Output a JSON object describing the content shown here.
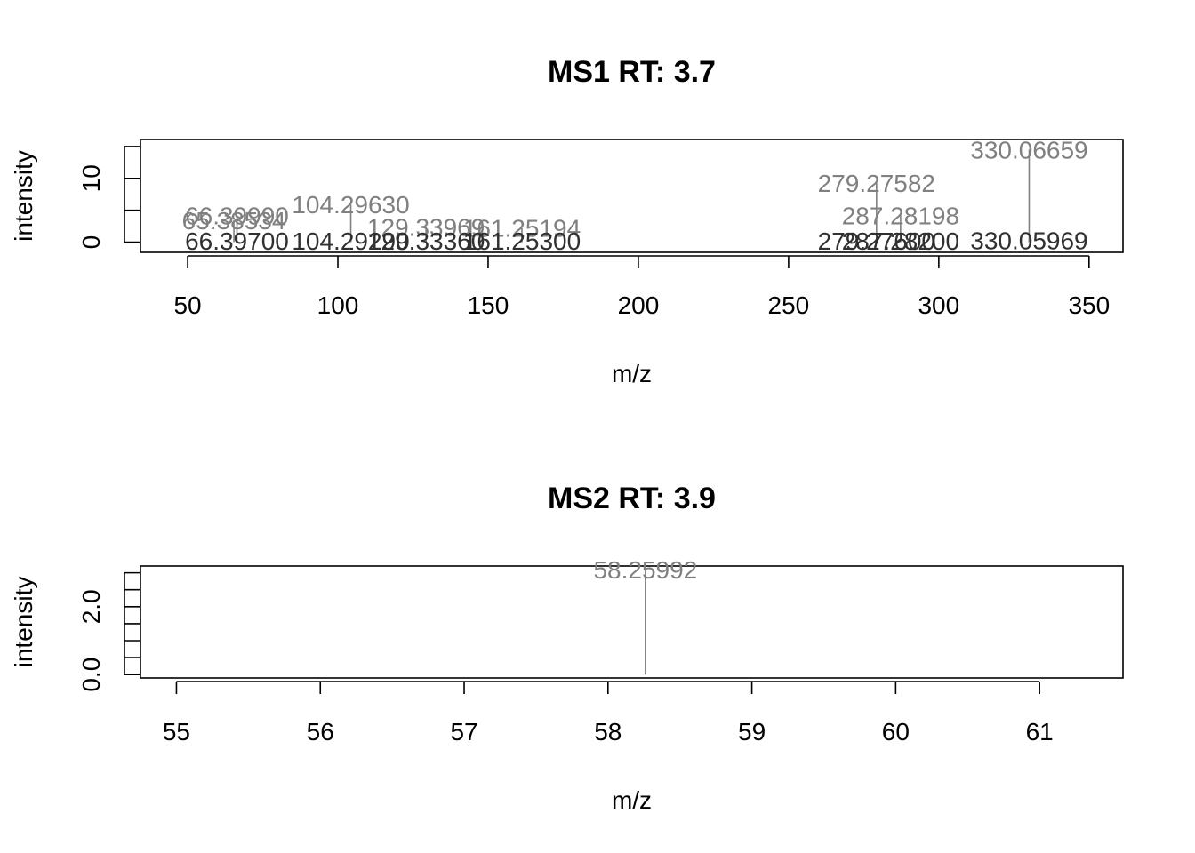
{
  "chart_data": [
    {
      "type": "bar",
      "title": "MS1 RT: 3.7",
      "xlabel": "m/z",
      "ylabel": "intensity",
      "xlim": [
        34.3,
        361.3
      ],
      "ylim": [
        -1.6,
        16.1
      ],
      "xticks": [
        50,
        100,
        150,
        200,
        250,
        300,
        350
      ],
      "yticks": [
        0,
        10
      ],
      "yticks_minor": [
        0,
        5,
        10,
        15
      ],
      "peaks": [
        {
          "mz": 330.06659,
          "intensity": 14.5,
          "label": "330.06659"
        },
        {
          "mz": 279.27582,
          "intensity": 9.3,
          "label": "279.27582"
        },
        {
          "mz": 287.28198,
          "intensity": 4.2,
          "label": "287.28198"
        },
        {
          "mz": 104.2963,
          "intensity": 5.9,
          "label": "104.29630"
        },
        {
          "mz": 66.3999,
          "intensity": 4.2,
          "label": "66.39990"
        },
        {
          "mz": 65.38534,
          "intensity": 3.4,
          "label": "65.38534"
        },
        {
          "mz": 129.33969,
          "intensity": 2.4,
          "label": "129.33969"
        },
        {
          "mz": 161.25194,
          "intensity": 2.2,
          "label": "161.25194"
        },
        {
          "mz": 330.05969,
          "intensity": 0.3,
          "label": "330.05969"
        },
        {
          "mz": 66.397,
          "intensity": 0.2,
          "label": "66.39700"
        },
        {
          "mz": 104.2929,
          "intensity": 0.2,
          "label": "104.29290"
        },
        {
          "mz": 129.3336,
          "intensity": 0.2,
          "label": "129.33360"
        },
        {
          "mz": 161.253,
          "intensity": 0.2,
          "label": "161.25300"
        },
        {
          "mz": 279.276,
          "intensity": 0.2,
          "label": "279.27600"
        },
        {
          "mz": 287.282,
          "intensity": 0.2,
          "label": "287.28200"
        }
      ]
    },
    {
      "type": "bar",
      "title": "MS2 RT: 3.9",
      "xlabel": "m/z",
      "ylabel": "intensity",
      "xlim": [
        54.75,
        61.58
      ],
      "ylim": [
        -0.1,
        3.2
      ],
      "xticks": [
        55,
        56,
        57,
        58,
        59,
        60,
        61
      ],
      "yticks": [
        0.0,
        2.0
      ],
      "yticks_minor": [
        0.0,
        0.5,
        1.0,
        1.5,
        2.0,
        2.5,
        3.0
      ],
      "peaks": [
        {
          "mz": 58.25992,
          "intensity": 3.1,
          "label": "58.25992"
        }
      ]
    }
  ]
}
